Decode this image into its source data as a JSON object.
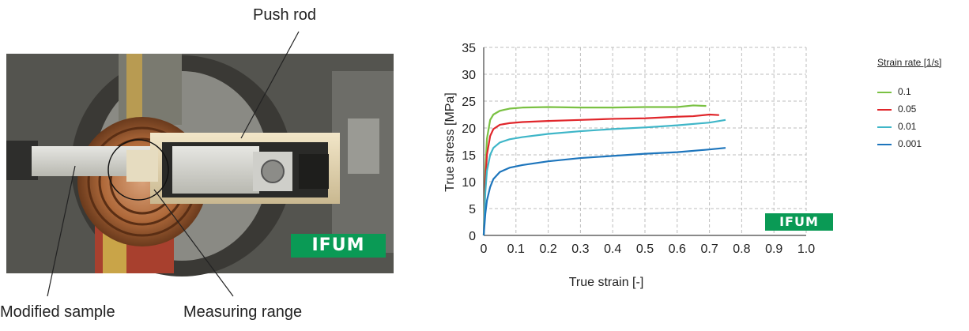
{
  "photo": {
    "label_push_rod": "Push rod",
    "label_modified_sample": "Modified sample",
    "label_measuring_range": "Measuring range",
    "logo_text": "IFUM"
  },
  "chart_data": {
    "type": "line",
    "xlabel": "True strain [-]",
    "ylabel": "True stress  [MPa]",
    "xlim": [
      0,
      1.0
    ],
    "ylim": [
      0,
      35
    ],
    "x_ticks": [
      "0",
      "0.1",
      "0.2",
      "0.3",
      "0.4",
      "0.5",
      "0.6",
      "0.7",
      "0.8",
      "0.9",
      "1.0"
    ],
    "y_ticks": [
      "0",
      "5",
      "10",
      "15",
      "20",
      "25",
      "30",
      "35"
    ],
    "grid": true,
    "legend_title": "Strain rate [1/s]",
    "legend_position": "right",
    "logo_text": "IFUM",
    "series": [
      {
        "name": "0.1",
        "color": "#7ac143",
        "x": [
          0,
          0.005,
          0.01,
          0.02,
          0.03,
          0.05,
          0.08,
          0.12,
          0.2,
          0.3,
          0.4,
          0.5,
          0.6,
          0.65,
          0.69
        ],
        "values": [
          0,
          12,
          18,
          21.5,
          22.5,
          23.2,
          23.6,
          23.8,
          23.9,
          23.8,
          23.8,
          23.9,
          23.9,
          24.2,
          24.1
        ]
      },
      {
        "name": "0.05",
        "color": "#e0262b",
        "x": [
          0,
          0.005,
          0.01,
          0.02,
          0.03,
          0.05,
          0.08,
          0.12,
          0.2,
          0.3,
          0.4,
          0.5,
          0.6,
          0.65,
          0.7,
          0.73
        ],
        "values": [
          0,
          10,
          15,
          18.5,
          19.8,
          20.6,
          20.9,
          21.1,
          21.3,
          21.5,
          21.7,
          21.8,
          22.1,
          22.2,
          22.5,
          22.4
        ]
      },
      {
        "name": "0.01",
        "color": "#3fb6c8",
        "x": [
          0,
          0.005,
          0.01,
          0.02,
          0.03,
          0.05,
          0.08,
          0.12,
          0.2,
          0.3,
          0.4,
          0.5,
          0.6,
          0.7,
          0.75
        ],
        "values": [
          0,
          8,
          12,
          15,
          16.3,
          17.3,
          17.9,
          18.3,
          18.9,
          19.4,
          19.8,
          20.1,
          20.5,
          21.0,
          21.5
        ]
      },
      {
        "name": "0.001",
        "color": "#1d75bc",
        "x": [
          0,
          0.005,
          0.01,
          0.02,
          0.03,
          0.05,
          0.08,
          0.12,
          0.2,
          0.3,
          0.4,
          0.5,
          0.6,
          0.7,
          0.75
        ],
        "values": [
          0,
          4,
          6.5,
          9,
          10.5,
          11.8,
          12.6,
          13.1,
          13.8,
          14.4,
          14.8,
          15.2,
          15.5,
          16.0,
          16.3
        ]
      }
    ]
  }
}
